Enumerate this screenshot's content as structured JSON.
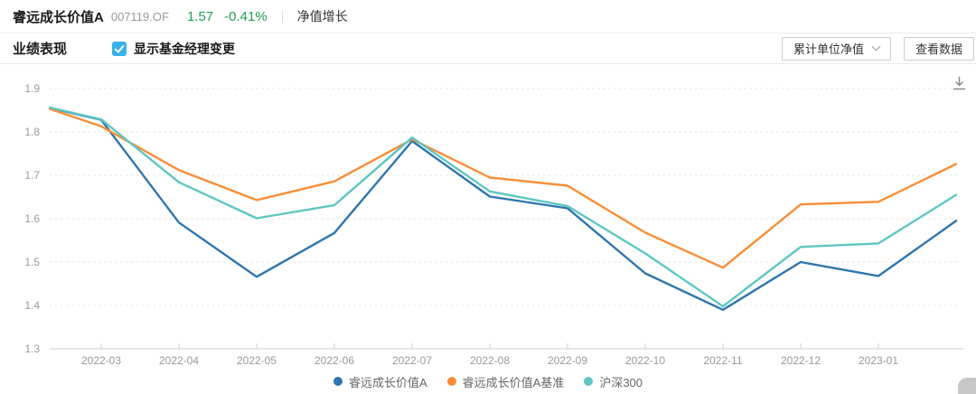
{
  "header": {
    "title": "睿远成长价值A",
    "code": "007119.OF",
    "nav": "1.57",
    "change": "-0.41%",
    "nav_label": "净值增长"
  },
  "toolbar": {
    "tab": "业绩表现",
    "checkbox_label": "显示基金经理变更",
    "checkbox_checked": true,
    "dropdown_value": "累计单位净值",
    "view_data_label": "查看数据"
  },
  "icons": {
    "download": "download-icon",
    "chevron": "chevron-down-icon",
    "checkbox": "checked-checkbox-icon"
  },
  "colors": {
    "green": "#21a052",
    "series_blue": "#2e75ad",
    "series_orange": "#f98e36",
    "series_teal": "#5ec6c1",
    "axis_text": "#999999",
    "gridline": "#e8e8e8",
    "axis_line": "#cccccc"
  },
  "chart_data": {
    "type": "line",
    "title": "",
    "xlabel": "",
    "ylabel": "",
    "ylim": [
      1.3,
      1.9
    ],
    "y_ticks": [
      1.3,
      1.4,
      1.5,
      1.6,
      1.7,
      1.8,
      1.9
    ],
    "grid": "horizontal-dashed",
    "legend_position": "bottom",
    "x_tick_labels": [
      "2022-03",
      "2022-04",
      "2022-05",
      "2022-06",
      "2022-07",
      "2022-08",
      "2022-09",
      "2022-10",
      "2022-11",
      "2022-12",
      "2023-01"
    ],
    "x_offsets": [
      -0.66,
      0,
      1,
      2,
      3,
      4,
      5,
      6,
      7,
      8,
      9,
      10,
      11
    ],
    "series": [
      {
        "name": "睿远成长价值A",
        "color": "#2e75ad",
        "values": [
          1.855,
          1.828,
          1.591,
          1.466,
          1.567,
          1.779,
          1.651,
          1.624,
          1.474,
          1.39,
          1.5,
          1.468,
          1.595
        ]
      },
      {
        "name": "睿远成长价值A基准",
        "color": "#f98e36",
        "values": [
          1.853,
          1.813,
          1.712,
          1.643,
          1.686,
          1.783,
          1.695,
          1.676,
          1.568,
          1.487,
          1.633,
          1.639,
          1.726
        ]
      },
      {
        "name": "沪深300",
        "color": "#5ec6c1",
        "values": [
          1.856,
          1.829,
          1.684,
          1.601,
          1.631,
          1.787,
          1.663,
          1.629,
          1.52,
          1.398,
          1.535,
          1.543,
          1.655
        ]
      }
    ]
  }
}
